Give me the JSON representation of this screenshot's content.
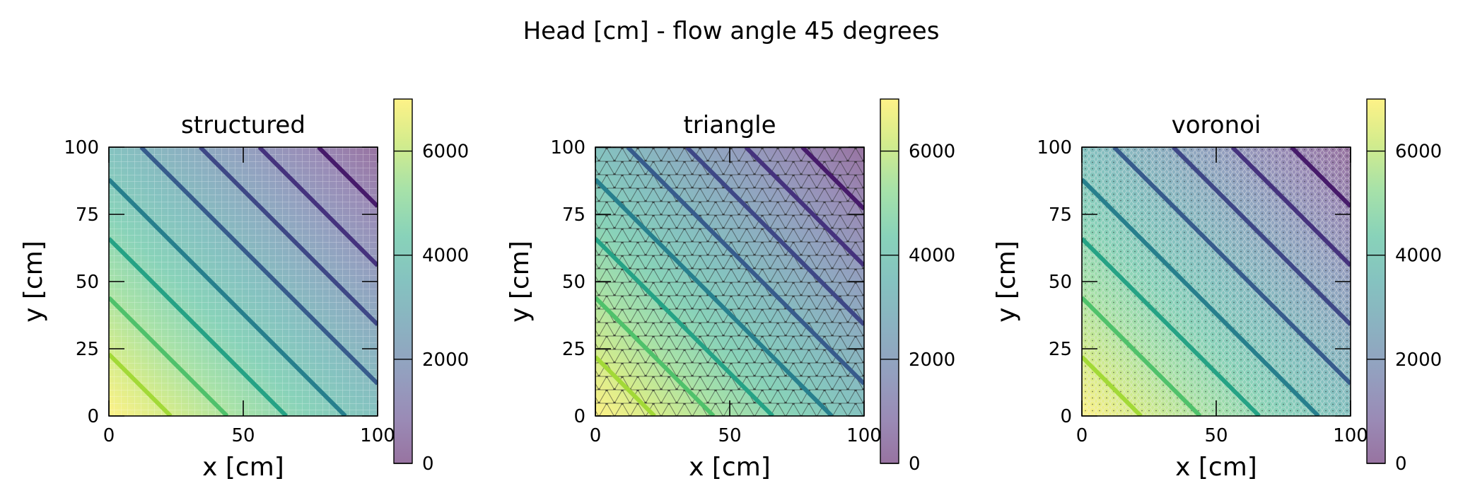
{
  "figure": {
    "title": "Head [cm] - flow angle 45 degrees"
  },
  "colormap": [
    "#440154",
    "#472d7b",
    "#3b528b",
    "#2c728e",
    "#21918c",
    "#28ae80",
    "#5ec962",
    "#addc30",
    "#fde725"
  ],
  "chart_data": [
    {
      "type": "heatmap",
      "title": "structured",
      "xlabel": "x [cm]",
      "ylabel": "y [cm]",
      "xlim": [
        0,
        100
      ],
      "ylim": [
        0,
        100
      ],
      "xticks": [
        "0",
        "50",
        "100"
      ],
      "yticks": [
        "0",
        "25",
        "50",
        "75",
        "100"
      ],
      "grid": "structured",
      "colorbar": {
        "min": 0,
        "max": 7000,
        "ticks": [
          "0",
          "2000",
          "4000",
          "6000"
        ]
      },
      "head_field": {
        "max_at": [
          0,
          0
        ],
        "value_at_origin": 7000,
        "value_at_far_corner": 0
      },
      "contours": [
        {
          "level": 6000,
          "x0": 23,
          "y0": 0,
          "x1": 0,
          "y1": 23
        },
        {
          "level": 5000,
          "x0": 44,
          "y0": 0,
          "x1": 0,
          "y1": 44
        },
        {
          "level": 4000,
          "x0": 66,
          "y0": 0,
          "x1": 0,
          "y1": 66
        },
        {
          "level": 3000,
          "x0": 88,
          "y0": 0,
          "x1": 0,
          "y1": 88
        },
        {
          "level": 2000,
          "x0": 100,
          "y0": 12,
          "x1": 12,
          "y1": 100
        },
        {
          "level": 1500,
          "x0": 100,
          "y0": 34,
          "x1": 34,
          "y1": 100
        },
        {
          "level": 1000,
          "x0": 100,
          "y0": 56,
          "x1": 56,
          "y1": 100
        },
        {
          "level": 500,
          "x0": 100,
          "y0": 78,
          "x1": 78,
          "y1": 100
        }
      ]
    },
    {
      "type": "heatmap",
      "title": "triangle",
      "xlabel": "x [cm]",
      "ylabel": "y [cm]",
      "xlim": [
        0,
        100
      ],
      "ylim": [
        0,
        100
      ],
      "xticks": [
        "0",
        "50",
        "100"
      ],
      "yticks": [
        "0",
        "25",
        "50",
        "75",
        "100"
      ],
      "grid": "triangle",
      "colorbar": {
        "min": 0,
        "max": 7000,
        "ticks": [
          "0",
          "2000",
          "4000",
          "6000"
        ]
      },
      "head_field": {
        "max_at": [
          0,
          0
        ],
        "value_at_origin": 7000,
        "value_at_far_corner": 0
      },
      "contours": [
        {
          "level": 6000,
          "x0": 22,
          "y0": 0,
          "x1": 0,
          "y1": 22
        },
        {
          "level": 5000,
          "x0": 44,
          "y0": 0,
          "x1": 0,
          "y1": 44
        },
        {
          "level": 4000,
          "x0": 66,
          "y0": 0,
          "x1": 0,
          "y1": 66
        },
        {
          "level": 3000,
          "x0": 88,
          "y0": 0,
          "x1": 0,
          "y1": 88
        },
        {
          "level": 2000,
          "x0": 100,
          "y0": 12,
          "x1": 12,
          "y1": 100
        },
        {
          "level": 1500,
          "x0": 100,
          "y0": 34,
          "x1": 34,
          "y1": 100
        },
        {
          "level": 1000,
          "x0": 100,
          "y0": 56,
          "x1": 56,
          "y1": 100
        },
        {
          "level": 500,
          "x0": 100,
          "y0": 77,
          "x1": 77,
          "y1": 100
        }
      ]
    },
    {
      "type": "heatmap",
      "title": "voronoi",
      "xlabel": "x [cm]",
      "ylabel": "y [cm]",
      "xlim": [
        0,
        100
      ],
      "ylim": [
        0,
        100
      ],
      "xticks": [
        "0",
        "50",
        "100"
      ],
      "yticks": [
        "0",
        "25",
        "50",
        "75",
        "100"
      ],
      "grid": "voronoi",
      "colorbar": {
        "min": 0,
        "max": 7000,
        "ticks": [
          "0",
          "2000",
          "4000",
          "6000"
        ]
      },
      "head_field": {
        "max_at": [
          0,
          0
        ],
        "value_at_origin": 7000,
        "value_at_far_corner": 0
      },
      "contours": [
        {
          "level": 6000,
          "x0": 22,
          "y0": 0,
          "x1": 0,
          "y1": 22
        },
        {
          "level": 5000,
          "x0": 44,
          "y0": 0,
          "x1": 0,
          "y1": 44
        },
        {
          "level": 4000,
          "x0": 66,
          "y0": 0,
          "x1": 0,
          "y1": 66
        },
        {
          "level": 3000,
          "x0": 88,
          "y0": 0,
          "x1": 0,
          "y1": 88
        },
        {
          "level": 2000,
          "x0": 100,
          "y0": 12,
          "x1": 12,
          "y1": 100
        },
        {
          "level": 1500,
          "x0": 100,
          "y0": 34,
          "x1": 34,
          "y1": 100
        },
        {
          "level": 1000,
          "x0": 100,
          "y0": 56,
          "x1": 56,
          "y1": 100
        },
        {
          "level": 500,
          "x0": 100,
          "y0": 78,
          "x1": 78,
          "y1": 100
        }
      ]
    }
  ]
}
